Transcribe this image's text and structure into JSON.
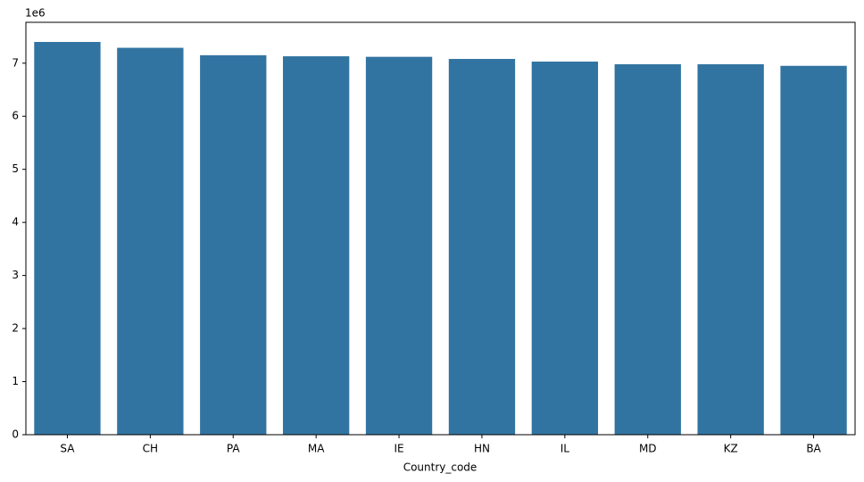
{
  "chart_data": {
    "type": "bar",
    "x_label": "Country_code",
    "y_offset_label": "1e6",
    "categories": [
      "SA",
      "CH",
      "PA",
      "MA",
      "IE",
      "HN",
      "IL",
      "MD",
      "KZ",
      "BA"
    ],
    "values": [
      7.4,
      7.29,
      7.15,
      7.13,
      7.12,
      7.08,
      7.03,
      6.98,
      6.98,
      6.95
    ],
    "color": "#3274a1",
    "ylim": [
      0,
      7.77
    ],
    "yticks": [
      0,
      1,
      2,
      3,
      4,
      5,
      6,
      7
    ],
    "grid": false
  }
}
